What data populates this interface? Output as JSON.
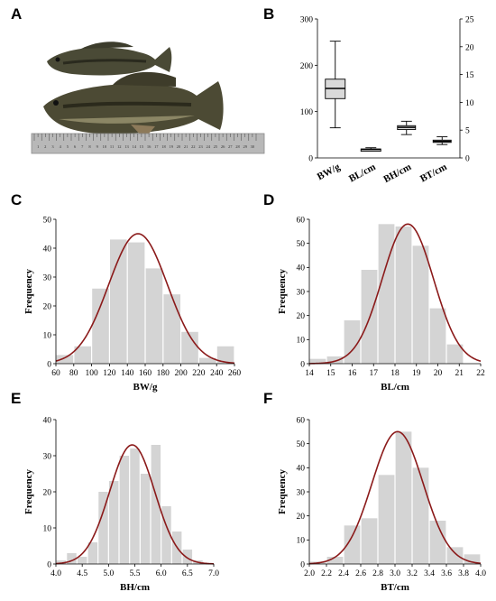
{
  "panels": {
    "A": "A",
    "B": "B",
    "C": "C",
    "D": "D",
    "E": "E",
    "F": "F"
  },
  "colors": {
    "bar": "#d4d4d4",
    "curve": "#8b1a1a",
    "box": "#d9d9d9",
    "ruler": "#b8b8b8",
    "fish_dark": "#3a3a2c",
    "fish_light": "#8f8a62"
  },
  "photo": {
    "ruler_labels": [
      "1",
      "2",
      "3",
      "4",
      "5",
      "6",
      "7",
      "8",
      "9",
      "10",
      "11",
      "12",
      "13",
      "14",
      "15",
      "16",
      "17",
      "18",
      "19",
      "20",
      "21",
      "22",
      "23",
      "24",
      "25",
      "26",
      "27",
      "28",
      "29",
      "30"
    ]
  },
  "chart_data": [
    {
      "id": "B",
      "type": "box",
      "categories": [
        "BW/g",
        "BL/cm",
        "BH/cm",
        "BT/cm"
      ],
      "axis": [
        "left",
        "left",
        "right",
        "right"
      ],
      "ylim_left": [
        0,
        300
      ],
      "yticks_left": [
        0,
        100,
        200,
        300
      ],
      "ylim_right": [
        0,
        25
      ],
      "yticks_right": [
        0,
        5,
        10,
        15,
        20,
        25
      ],
      "boxes": [
        {
          "min": 65,
          "q1": 128,
          "median": 150,
          "q3": 170,
          "max": 252
        },
        {
          "min": 15,
          "q1": 18,
          "median": 18.5,
          "q3": 19.3,
          "max": 22
        },
        {
          "min": 4.2,
          "q1": 5.1,
          "median": 5.5,
          "q3": 5.8,
          "max": 6.6
        },
        {
          "min": 2.4,
          "q1": 2.9,
          "median": 3.0,
          "q3": 3.2,
          "max": 3.8
        }
      ]
    },
    {
      "id": "C",
      "type": "bar",
      "xlabel": "BW/g",
      "ylabel": "Frequency",
      "xlim": [
        60,
        260
      ],
      "ylim": [
        0,
        50
      ],
      "xticks": [
        60,
        80,
        100,
        120,
        140,
        160,
        180,
        200,
        220,
        240,
        260
      ],
      "yticks": [
        0,
        10,
        20,
        30,
        40,
        50
      ],
      "bin_width": 20,
      "bins": [
        60,
        80,
        100,
        120,
        140,
        160,
        180,
        200,
        220,
        240
      ],
      "values": [
        3,
        6,
        26,
        43,
        42,
        33,
        24,
        11,
        2,
        6
      ],
      "curve": {
        "mean": 152,
        "sd": 33,
        "peak": 45
      }
    },
    {
      "id": "D",
      "type": "bar",
      "xlabel": "BL/cm",
      "ylabel": "Frequency",
      "xlim": [
        14,
        22
      ],
      "ylim": [
        0,
        60
      ],
      "xticks": [
        14,
        15,
        16,
        17,
        18,
        19,
        20,
        21,
        22
      ],
      "yticks": [
        0,
        10,
        20,
        30,
        40,
        50,
        60
      ],
      "bin_width": 0.8,
      "bins": [
        14,
        14.8,
        15.6,
        16.4,
        17.2,
        18,
        18.8,
        19.6,
        20.4,
        21.2
      ],
      "values": [
        2,
        3,
        18,
        39,
        58,
        57,
        49,
        23,
        8,
        0
      ],
      "curve": {
        "mean": 18.6,
        "sd": 1.2,
        "peak": 58
      }
    },
    {
      "id": "E",
      "type": "bar",
      "xlabel": "BH/cm",
      "ylabel": "Frequency",
      "xlim": [
        4.0,
        7.0
      ],
      "ylim": [
        0,
        40
      ],
      "xticks": [
        4.0,
        4.5,
        5.0,
        5.5,
        6.0,
        6.5,
        7.0
      ],
      "yticks": [
        0,
        10,
        20,
        30,
        40
      ],
      "xtick_labels": [
        "4.0",
        "4.5",
        "5.0",
        "5.5",
        "6.0",
        "6.5",
        "7.0"
      ],
      "bin_width": 0.2,
      "bins": [
        4.0,
        4.2,
        4.4,
        4.6,
        4.8,
        5.0,
        5.2,
        5.4,
        5.6,
        5.8,
        6.0,
        6.2,
        6.4,
        6.6
      ],
      "values": [
        1,
        3,
        2,
        6,
        20,
        23,
        30,
        32,
        25,
        33,
        16,
        9,
        4,
        1
      ],
      "curve": {
        "mean": 5.45,
        "sd": 0.43,
        "peak": 33
      }
    },
    {
      "id": "F",
      "type": "bar",
      "xlabel": "BT/cm",
      "ylabel": "Frequency",
      "xlim": [
        2.0,
        4.0
      ],
      "ylim": [
        0,
        60
      ],
      "xticks": [
        2.0,
        2.2,
        2.4,
        2.6,
        2.8,
        3.0,
        3.2,
        3.4,
        3.6,
        3.8,
        4.0
      ],
      "yticks": [
        0,
        10,
        20,
        30,
        40,
        50,
        60
      ],
      "xtick_labels": [
        "2.0",
        "2.2",
        "2.4",
        "2.6",
        "2.8",
        "3.0",
        "3.2",
        "3.4",
        "3.6",
        "3.8",
        "4.0"
      ],
      "bin_width": 0.2,
      "bins": [
        2.0,
        2.2,
        2.4,
        2.6,
        2.8,
        3.0,
        3.2,
        3.4,
        3.6,
        3.8
      ],
      "values": [
        1,
        3,
        16,
        19,
        37,
        55,
        40,
        18,
        7,
        4
      ],
      "curve": {
        "mean": 3.03,
        "sd": 0.3,
        "peak": 55
      }
    }
  ]
}
